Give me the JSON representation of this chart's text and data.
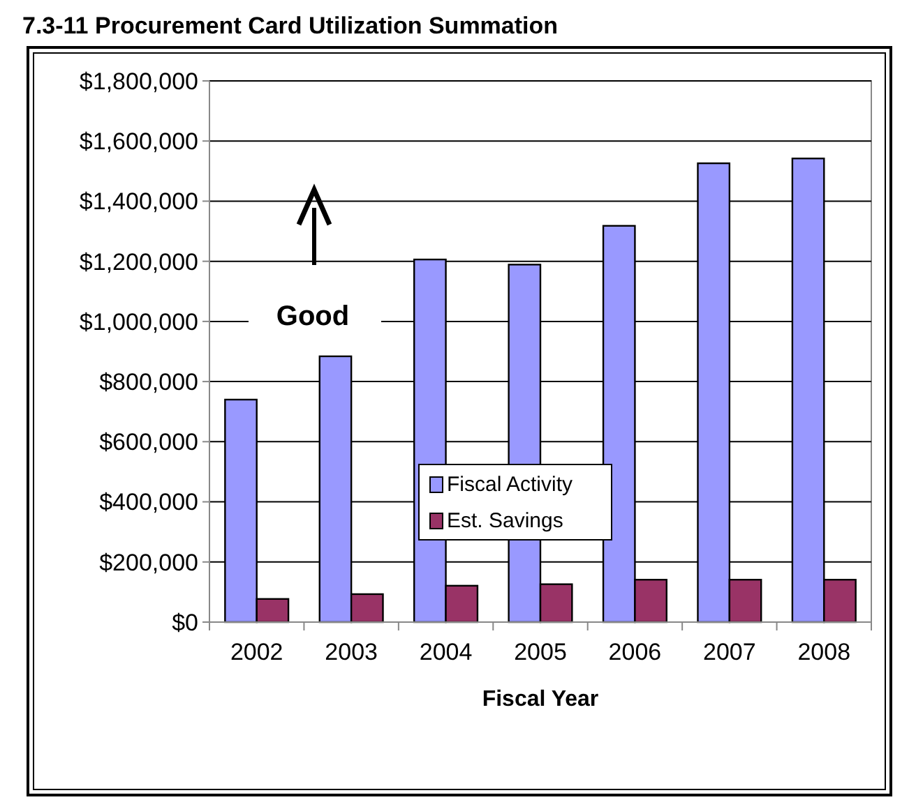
{
  "chart_data": {
    "type": "bar",
    "title": "7.3-11 Procurement Card Utilization Summation",
    "xlabel": "Fiscal Year",
    "categories": [
      "2002",
      "2003",
      "2004",
      "2005",
      "2006",
      "2007",
      "2008"
    ],
    "series": [
      {
        "name": "Fiscal Activity",
        "color": "#9999ff",
        "values": [
          740000,
          884000,
          1206000,
          1189000,
          1318000,
          1526000,
          1542000
        ]
      },
      {
        "name": "Est. Savings",
        "color": "#993366",
        "values": [
          77000,
          93000,
          121000,
          126000,
          141000,
          141000,
          141000
        ]
      }
    ],
    "ylim": [
      0,
      1800000
    ],
    "yticks": [
      {
        "value": 0,
        "label": "$0"
      },
      {
        "value": 200000,
        "label": "$200,000"
      },
      {
        "value": 400000,
        "label": "$400,000"
      },
      {
        "value": 600000,
        "label": "$600,000"
      },
      {
        "value": 800000,
        "label": "$800,000"
      },
      {
        "value": 1000000,
        "label": "$1,000,000"
      },
      {
        "value": 1200000,
        "label": "$1,200,000"
      },
      {
        "value": 1400000,
        "label": "$1,400,000"
      },
      {
        "value": 1600000,
        "label": "$1,600,000"
      },
      {
        "value": 1800000,
        "label": "$1,800,000"
      }
    ],
    "grid": "y",
    "legend": "center",
    "annotations": [
      "Good"
    ]
  }
}
